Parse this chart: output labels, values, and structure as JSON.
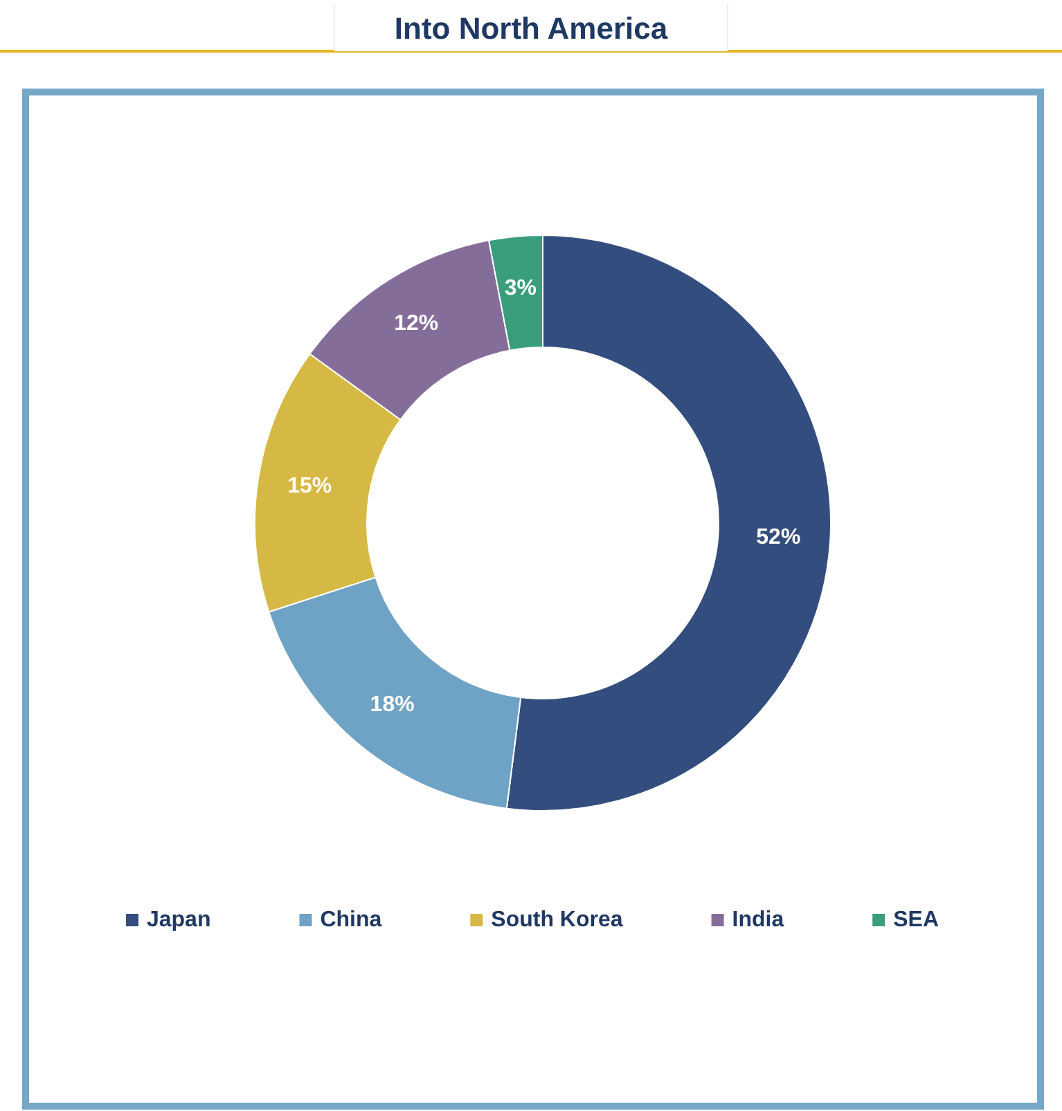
{
  "chart_data": {
    "type": "donut",
    "title": "Into North America",
    "categories": [
      "Japan",
      "China",
      "South Korea",
      "India",
      "SEA"
    ],
    "values": [
      52,
      18,
      15,
      12,
      3
    ],
    "colors": [
      "#334d7e",
      "#6fa3c5",
      "#d6b944",
      "#856d9a",
      "#3a9d7b"
    ],
    "value_labels": [
      "52%",
      "18%",
      "15%",
      "12%",
      "3%"
    ],
    "legend": "bottom"
  }
}
